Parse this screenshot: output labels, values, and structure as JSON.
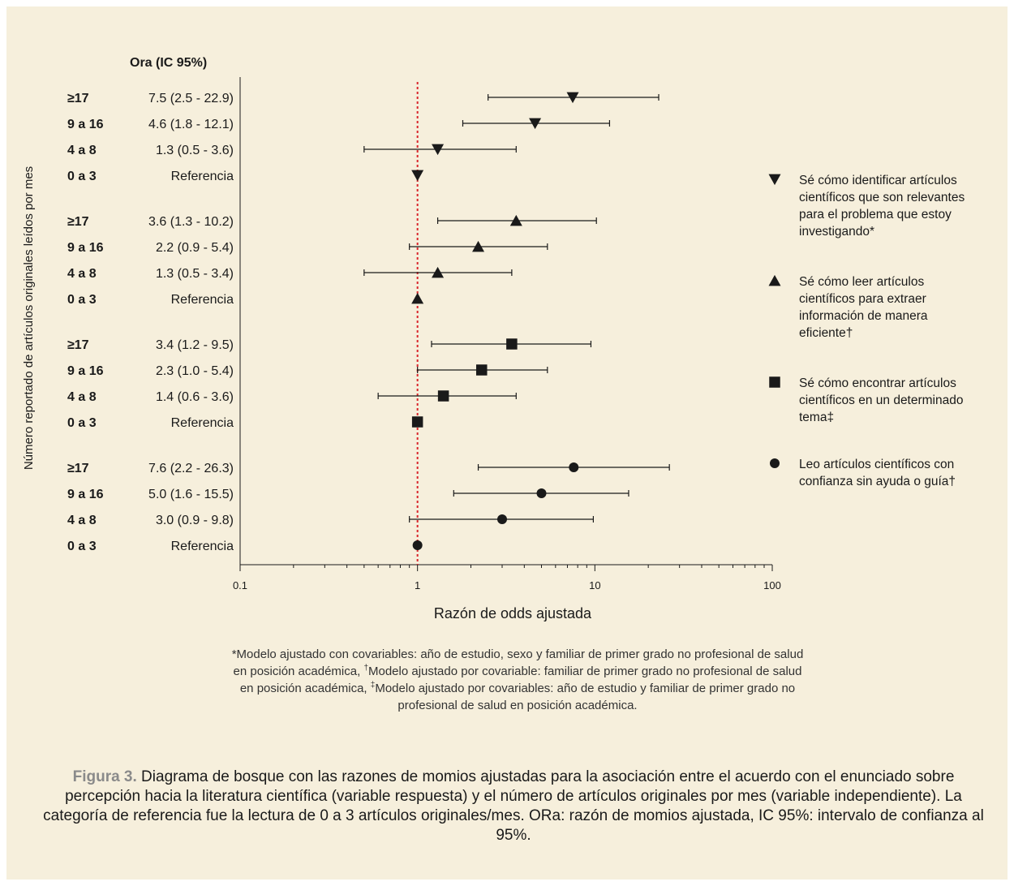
{
  "chart_data": {
    "type": "scatter",
    "subtype": "forest-plot",
    "x_scale": "log",
    "xlim": [
      0.1,
      100
    ],
    "x_ticks": [
      0.1,
      1,
      10,
      100
    ],
    "x_tick_labels": [
      "0.1",
      "1",
      "10",
      "100"
    ],
    "xlabel": "Razón de odds ajustada",
    "ylabel": "Número reportado de artículos originales leídos por mes",
    "table_header": "Ora (IC 95%)",
    "reference_line": {
      "x": 1,
      "style": "dotted",
      "color": "#d9262c"
    },
    "legend_position": "right",
    "groups": [
      {
        "marker": "triangle-down",
        "legend": "Sé cómo identificar artículos científicos que son relevantes para el problema que estoy investigando*",
        "rows": [
          {
            "category": "≥17",
            "label": "7.5 (2.5 - 22.9)",
            "or": 7.5,
            "low": 2.5,
            "high": 22.9
          },
          {
            "category": "9 a 16",
            "label": "4.6 (1.8 - 12.1)",
            "or": 4.6,
            "low": 1.8,
            "high": 12.1
          },
          {
            "category": "4 a 8",
            "label": "1.3 (0.5 - 3.6)",
            "or": 1.3,
            "low": 0.5,
            "high": 3.6
          },
          {
            "category": "0 a 3",
            "label": "Referencia",
            "or": 1,
            "low": null,
            "high": null
          }
        ]
      },
      {
        "marker": "triangle-up",
        "legend": "Sé cómo leer artículos científicos para extraer información de manera eficiente†",
        "rows": [
          {
            "category": "≥17",
            "label": "3.6 (1.3 - 10.2)",
            "or": 3.6,
            "low": 1.3,
            "high": 10.2
          },
          {
            "category": "9 a 16",
            "label": "2.2 (0.9 - 5.4)",
            "or": 2.2,
            "low": 0.9,
            "high": 5.4
          },
          {
            "category": "4 a 8",
            "label": "1.3 (0.5 - 3.4)",
            "or": 1.3,
            "low": 0.5,
            "high": 3.4
          },
          {
            "category": "0 a 3",
            "label": "Referencia",
            "or": 1,
            "low": null,
            "high": null
          }
        ]
      },
      {
        "marker": "square",
        "legend": "Sé cómo encontrar artículos científicos en un determinado tema‡",
        "rows": [
          {
            "category": "≥17",
            "label": "3.4 (1.2 - 9.5)",
            "or": 3.4,
            "low": 1.2,
            "high": 9.5
          },
          {
            "category": "9 a 16",
            "label": "2.3 (1.0 - 5.4)",
            "or": 2.3,
            "low": 1.0,
            "high": 5.4
          },
          {
            "category": "4 a 8",
            "label": "1.4 (0.6 - 3.6)",
            "or": 1.4,
            "low": 0.6,
            "high": 3.6
          },
          {
            "category": "0 a 3",
            "label": "Referencia",
            "or": 1,
            "low": null,
            "high": null
          }
        ]
      },
      {
        "marker": "circle",
        "legend": "Leo artículos científicos con confianza sin ayuda o guía†",
        "rows": [
          {
            "category": "≥17",
            "label": "7.6 (2.2 - 26.3)",
            "or": 7.6,
            "low": 2.2,
            "high": 26.3
          },
          {
            "category": "9 a 16",
            "label": "5.0 (1.6 - 15.5)",
            "or": 5.0,
            "low": 1.6,
            "high": 15.5
          },
          {
            "category": "4 a 8",
            "label": "3.0 (0.9 - 9.8)",
            "or": 3.0,
            "low": 0.9,
            "high": 9.8
          },
          {
            "category": "0 a 3",
            "label": "Referencia",
            "or": 1,
            "low": null,
            "high": null
          }
        ]
      }
    ]
  },
  "footnote": {
    "part1": "*Modelo ajustado con covariables: año de estudio, sexo y familiar de primer grado no profesional de salud en posición académica, ",
    "dagger": "†",
    "part2": "Modelo ajustado por covariable: familiar de primer grado no profesional de salud en posición académica, ",
    "ddagger": "‡",
    "part3": "Modelo ajustado por covariables: año de estudio y familiar de primer grado no profesional de salud en posición académica."
  },
  "caption": {
    "label": "Figura 3.",
    "text": " Diagrama de bosque con las razones de momios ajustadas para la asociación entre el acuerdo con el enunciado sobre percepción hacia la literatura científica (variable respuesta) y el número de artículos originales por mes (variable independiente). La categoría de referencia fue la lectura de 0 a 3 artículos originales/mes. ORa: razón de momios ajustada, IC 95%: intervalo de confianza al 95%."
  },
  "colors": {
    "panel_background": "#f6efdc",
    "marker": "#1a1a1a",
    "reference_line": "#d9262c",
    "caption_label": "#8a8a8a"
  }
}
